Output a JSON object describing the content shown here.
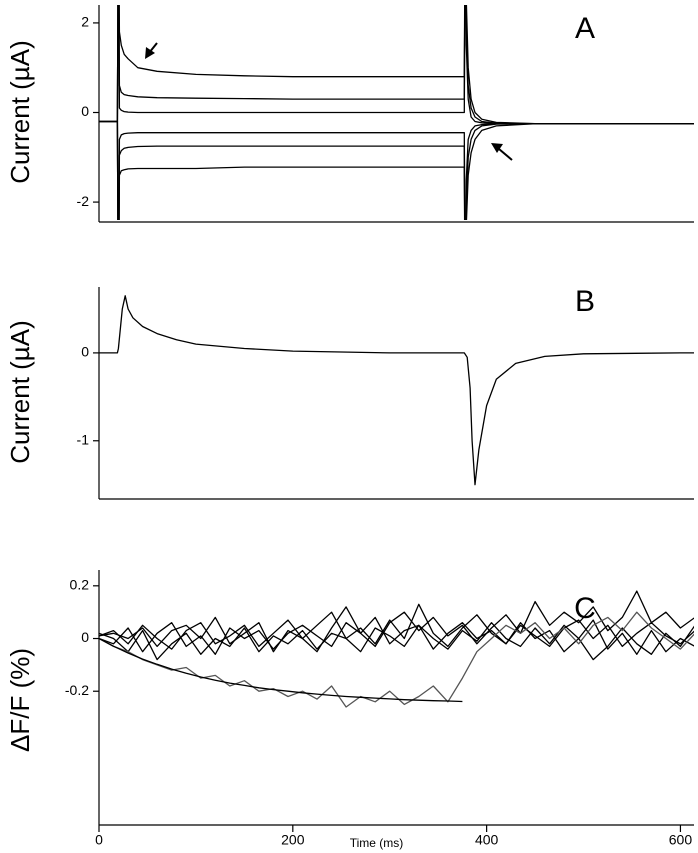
{
  "chart_data": [
    {
      "type": "line",
      "title": "A",
      "ylabel": "Current (µA)",
      "x": [
        0,
        19,
        20,
        21,
        23,
        26,
        30,
        40,
        60,
        100,
        150,
        200,
        250,
        300,
        350,
        377,
        378,
        379,
        381,
        384,
        388,
        395,
        410,
        450,
        500,
        550,
        600,
        614
      ],
      "xlim": [
        0,
        614
      ],
      "ylim": [
        -2.4,
        2.4
      ],
      "yticks": [
        2,
        0,
        -2
      ],
      "series": [
        {
          "color": "#000000",
          "values": [
            -0.2,
            -0.2,
            5,
            1.8,
            1.5,
            1.3,
            1.2,
            1.0,
            0.92,
            0.85,
            0.82,
            0.8,
            0.8,
            0.8,
            0.8,
            0.8,
            5,
            2.5,
            1,
            0.3,
            0,
            -0.15,
            -0.22,
            -0.25,
            -0.25,
            -0.25,
            -0.25,
            -0.25
          ]
        },
        {
          "color": "#000000",
          "values": [
            -0.2,
            -0.2,
            5,
            0.6,
            0.45,
            0.4,
            0.38,
            0.35,
            0.33,
            0.32,
            0.31,
            0.3,
            0.3,
            0.3,
            0.3,
            0.3,
            5,
            2,
            0.6,
            0.1,
            -0.1,
            -0.2,
            -0.24,
            -0.25,
            -0.25,
            -0.25,
            -0.25,
            -0.25
          ]
        },
        {
          "color": "#000000",
          "values": [
            -0.2,
            -0.2,
            5,
            0.1,
            0.05,
            0.02,
            0.01,
            0,
            0,
            0,
            0,
            0,
            0,
            0,
            0,
            0,
            5,
            1.5,
            0.3,
            -0.1,
            -0.2,
            -0.23,
            -0.25,
            -0.25,
            -0.25,
            -0.25,
            -0.25,
            -0.25
          ]
        },
        {
          "color": "#000000",
          "values": [
            -0.2,
            -0.2,
            -5,
            -0.6,
            -0.5,
            -0.47,
            -0.46,
            -0.45,
            -0.45,
            -0.45,
            -0.45,
            -0.45,
            -0.45,
            -0.45,
            -0.45,
            -0.45,
            -5,
            -1.5,
            -0.6,
            -0.4,
            -0.3,
            -0.27,
            -0.25,
            -0.25,
            -0.25,
            -0.25,
            -0.25,
            -0.25
          ]
        },
        {
          "color": "#000000",
          "values": [
            -0.2,
            -0.2,
            -5,
            -0.95,
            -0.85,
            -0.8,
            -0.78,
            -0.76,
            -0.75,
            -0.75,
            -0.75,
            -0.75,
            -0.75,
            -0.75,
            -0.75,
            -0.75,
            -5,
            -2,
            -1,
            -0.6,
            -0.4,
            -0.3,
            -0.26,
            -0.25,
            -0.25,
            -0.25,
            -0.25,
            -0.25
          ]
        },
        {
          "color": "#000000",
          "values": [
            -0.2,
            -0.2,
            -5,
            -1.4,
            -1.3,
            -1.28,
            -1.26,
            -1.25,
            -1.25,
            -1.25,
            -1.22,
            -1.22,
            -1.22,
            -1.22,
            -1.22,
            -1.22,
            -5,
            -2.5,
            -1.4,
            -0.9,
            -0.6,
            -0.4,
            -0.3,
            -0.25,
            -0.25,
            -0.25,
            -0.25,
            -0.25
          ]
        }
      ]
    },
    {
      "type": "line",
      "title": "B",
      "ylabel": "Current (µA)",
      "x": [
        0,
        19,
        20,
        24,
        27,
        30,
        35,
        45,
        60,
        80,
        100,
        150,
        200,
        250,
        300,
        350,
        377,
        380,
        383,
        385,
        388,
        392,
        400,
        410,
        430,
        460,
        500,
        600,
        614
      ],
      "xlim": [
        0,
        614
      ],
      "ylim": [
        -1.64,
        0.75
      ],
      "yticks": [
        0,
        -1
      ],
      "series": [
        {
          "color": "#000000",
          "values": [
            0,
            0,
            0.05,
            0.5,
            0.65,
            0.5,
            0.4,
            0.3,
            0.22,
            0.15,
            0.1,
            0.05,
            0.02,
            0.01,
            0,
            0,
            0,
            -0.05,
            -0.4,
            -1.0,
            -1.5,
            -1.1,
            -0.6,
            -0.3,
            -0.12,
            -0.04,
            -0.01,
            0,
            0
          ]
        }
      ]
    },
    {
      "type": "line",
      "title": "C",
      "ylabel": "ΔF/F (%)",
      "xlabel": "Time (ms)",
      "x": [
        0,
        15,
        30,
        45,
        60,
        75,
        90,
        105,
        120,
        135,
        150,
        165,
        180,
        195,
        210,
        225,
        240,
        255,
        270,
        285,
        300,
        315,
        330,
        345,
        360,
        375,
        390,
        405,
        420,
        435,
        450,
        465,
        480,
        495,
        510,
        525,
        540,
        555,
        570,
        585,
        600,
        615
      ],
      "xlim": [
        0,
        614
      ],
      "ylim": [
        -0.7,
        0.26
      ],
      "xticks": [
        0,
        200,
        400,
        600
      ],
      "yticks": [
        0.2,
        0,
        -0.2
      ],
      "series": [
        {
          "color": "#000000",
          "values": [
            0.01,
            0.03,
            -0.02,
            0.05,
            0,
            -0.04,
            0.03,
            0.06,
            -0.02,
            0.01,
            0.05,
            -0.03,
            0.02,
            0.07,
            0,
            -0.05,
            0.04,
            0.12,
            0.02,
            -0.03,
            0.06,
            0.1,
            0.03,
            0.08,
            0.01,
            0.05,
            -0.02,
            0.04,
            0.09,
            0.02,
            0.14,
            0.05,
            0.1,
            0.06,
            0.12,
            0.03,
            0.08,
            0.18,
            0.06,
            0.1,
            0.04,
            0.08
          ]
        },
        {
          "color": "#000000",
          "values": [
            0,
            -0.02,
            0.04,
            -0.05,
            0.02,
            0.06,
            -0.03,
            0.01,
            -0.06,
            0.04,
            0,
            0.03,
            -0.04,
            0.02,
            0.05,
            0.01,
            -0.03,
            0.06,
            0.02,
            0.08,
            -0.02,
            0.03,
            0.05,
            -0.04,
            0.02,
            0.06,
            0,
            0.03,
            -0.02,
            0.05,
            0.01,
            -0.03,
            0.04,
            0.07,
            0,
            0.05,
            -0.03,
            0.02,
            0.06,
            0.01,
            -0.02,
            0.03
          ]
        },
        {
          "color": "#000000",
          "values": [
            0.02,
            0,
            -0.05,
            0.03,
            -0.08,
            -0.02,
            0.02,
            -0.06,
            0,
            -0.03,
            0.04,
            -0.05,
            0.01,
            -0.02,
            0.03,
            -0.04,
            0.02,
            0,
            -0.05,
            0.04,
            0.01,
            -0.03,
            0.05,
            0,
            -0.04,
            0.03,
            -0.01,
            0.06,
            0,
            -0.03,
            0.04,
            -0.02,
            0.05,
            0,
            0.07,
            -0.04,
            0.02,
            -0.06,
            0.03,
            -0.05,
            0,
            -0.03
          ]
        },
        {
          "color": "#000000",
          "values": [
            0.01,
            0.02,
            0,
            0.04,
            -0.03,
            0.03,
            0.05,
            0,
            0.08,
            -0.02,
            0.02,
            0.06,
            -0.05,
            0.03,
            0,
            0.05,
            0.1,
            0,
            0.04,
            -0.02,
            0.07,
            0,
            0.13,
            0.02,
            -0.03,
            0.04,
            0.09,
            0.02,
            -0.02,
            0.06,
            0,
            0.03,
            -0.05,
            0,
            -0.08,
            -0.03,
            0.04,
            -0.02,
            -0.06,
            0.02,
            -0.03,
            0.05
          ]
        },
        {
          "color": "#555555",
          "values": [
            0,
            -0.03,
            -0.05,
            -0.08,
            -0.1,
            -0.12,
            -0.11,
            -0.15,
            -0.14,
            -0.18,
            -0.16,
            -0.2,
            -0.19,
            -0.22,
            -0.2,
            -0.23,
            -0.18,
            -0.26,
            -0.22,
            -0.24,
            -0.2,
            -0.25,
            -0.22,
            -0.18,
            -0.24,
            -0.15,
            -0.05,
            0,
            0.05,
            0.02,
            0.06,
            0,
            0.04,
            -0.02,
            0.05,
            0.08,
            0.03,
            0.1,
            0.04,
            0,
            -0.04,
            0.02
          ]
        },
        {
          "color": "#000000",
          "values": [
            0,
            -0.029,
            -0.055,
            -0.078,
            -0.098,
            -0.116,
            -0.132,
            -0.146,
            -0.158,
            -0.169,
            -0.178,
            -0.187,
            -0.194,
            -0.2,
            -0.206,
            -0.211,
            -0.216,
            -0.22,
            -0.223,
            -0.226,
            -0.229,
            -0.232,
            -0.234,
            -0.236,
            -0.237,
            -0.239,
            null,
            null,
            null,
            null,
            null,
            null,
            null,
            null,
            null,
            null,
            null,
            null,
            null,
            null,
            null,
            null
          ]
        }
      ]
    }
  ]
}
